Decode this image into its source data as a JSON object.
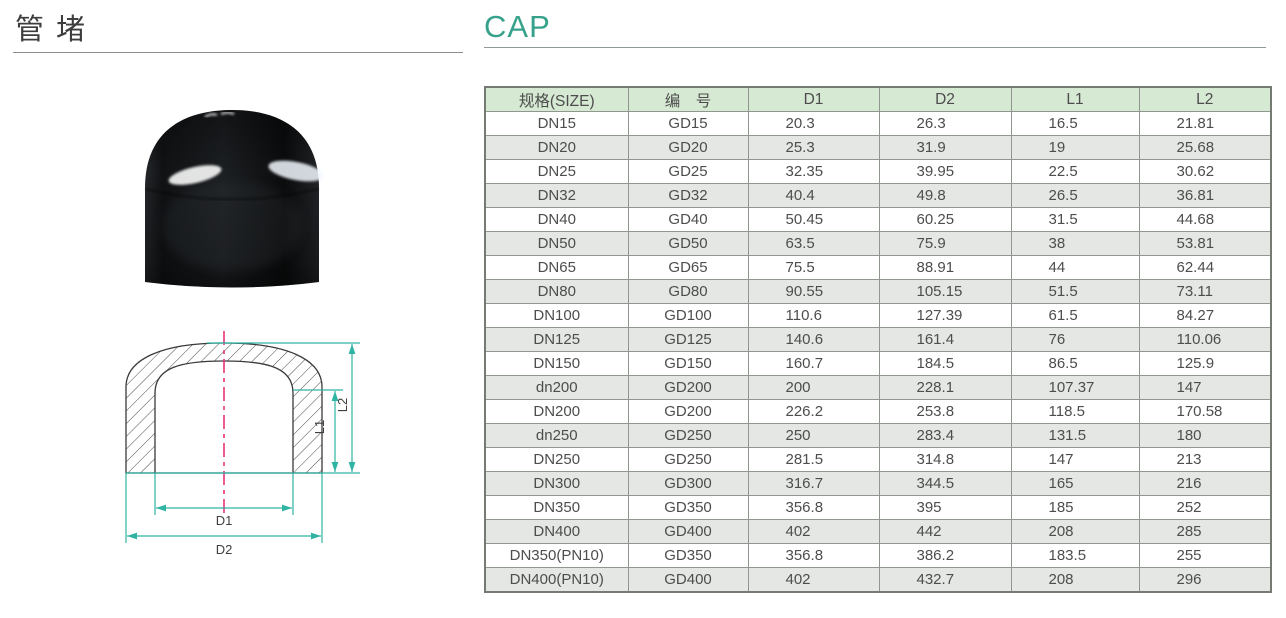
{
  "page": {
    "title_cn": "管 堵",
    "title_en": "CAP"
  },
  "colors": {
    "accent_teal": "#36a28c",
    "dimension_line": "#2fb3a3",
    "centerline_magenta": "#e8327a",
    "table_header_bg": "#d6e9d2",
    "table_alt_row_bg": "#e4e7e3",
    "grid_border": "#8f978f"
  },
  "diagram": {
    "label_d1": "D1",
    "label_d2": "D2",
    "label_l1": "L1",
    "label_l2": "L2"
  },
  "table": {
    "columns": [
      "规格(SIZE)",
      "编　号",
      "D1",
      "D2",
      "L1",
      "L2"
    ],
    "rows": [
      [
        "DN15",
        "GD15",
        "20.3",
        "26.3",
        "16.5",
        "21.81"
      ],
      [
        "DN20",
        "GD20",
        "25.3",
        "31.9",
        "19",
        "25.68"
      ],
      [
        "DN25",
        "GD25",
        "32.35",
        "39.95",
        "22.5",
        "30.62"
      ],
      [
        "DN32",
        "GD32",
        "40.4",
        "49.8",
        "26.5",
        "36.81"
      ],
      [
        "DN40",
        "GD40",
        "50.45",
        "60.25",
        "31.5",
        "44.68"
      ],
      [
        "DN50",
        "GD50",
        "63.5",
        "75.9",
        "38",
        "53.81"
      ],
      [
        "DN65",
        "GD65",
        "75.5",
        "88.91",
        "44",
        "62.44"
      ],
      [
        "DN80",
        "GD80",
        "90.55",
        "105.15",
        "51.5",
        "73.11"
      ],
      [
        "DN100",
        "GD100",
        "110.6",
        "127.39",
        "61.5",
        "84.27"
      ],
      [
        "DN125",
        "GD125",
        "140.6",
        "161.4",
        "76",
        "110.06"
      ],
      [
        "DN150",
        "GD150",
        "160.7",
        "184.5",
        "86.5",
        "125.9"
      ],
      [
        "dn200",
        "GD200",
        "200",
        "228.1",
        "107.37",
        "147"
      ],
      [
        "DN200",
        "GD200",
        "226.2",
        "253.8",
        "118.5",
        "170.58"
      ],
      [
        "dn250",
        "GD250",
        "250",
        "283.4",
        "131.5",
        "180"
      ],
      [
        "DN250",
        "GD250",
        "281.5",
        "314.8",
        "147",
        "213"
      ],
      [
        "DN300",
        "GD300",
        "316.7",
        "344.5",
        "165",
        "216"
      ],
      [
        "DN350",
        "GD350",
        "356.8",
        "395",
        "185",
        "252"
      ],
      [
        "DN400",
        "GD400",
        "402",
        "442",
        "208",
        "285"
      ],
      [
        "DN350(PN10)",
        "GD350",
        "356.8",
        "386.2",
        "183.5",
        "255"
      ],
      [
        "DN400(PN10)",
        "GD400",
        "402",
        "432.7",
        "208",
        "296"
      ]
    ]
  }
}
